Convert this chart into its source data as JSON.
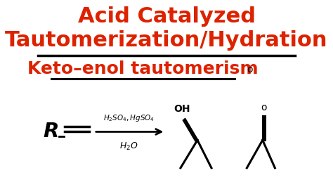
{
  "bg_color": "#ffffff",
  "title_line1": "Acid Catalyzed",
  "title_line2": "Tautomerization/Hydration",
  "title_color": "#dd2200",
  "title_fontsize": 22,
  "title_fontstyle": "bold",
  "subtitle": "Keto–enol tautomerism",
  "subtitle_color": "#dd2200",
  "subtitle_fontsize": 18,
  "subtitle_fontstyle": "bold",
  "line_color": "#000000",
  "arrow_color": "#000000"
}
